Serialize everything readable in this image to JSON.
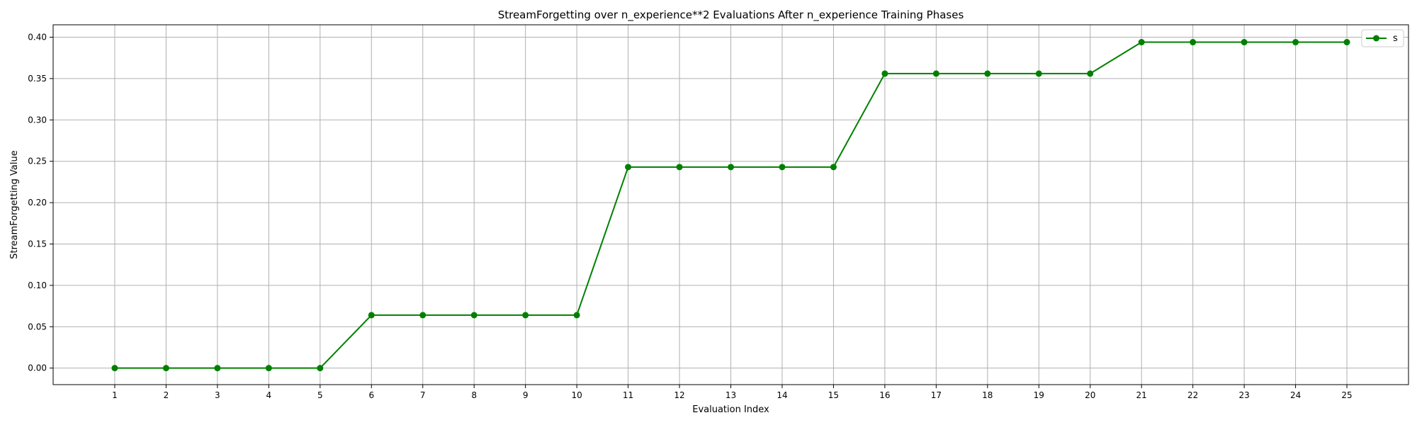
{
  "chart_data": {
    "type": "line",
    "title": "StreamForgetting over n_experience**2 Evaluations After n_experience Training Phases",
    "xlabel": "Evaluation Index",
    "ylabel": "StreamForgetting Value",
    "x": [
      1,
      2,
      3,
      4,
      5,
      6,
      7,
      8,
      9,
      10,
      11,
      12,
      13,
      14,
      15,
      16,
      17,
      18,
      19,
      20,
      21,
      22,
      23,
      24,
      25
    ],
    "xlim": [
      -0.2,
      26.2
    ],
    "ylim": [
      -0.02,
      0.415
    ],
    "yticks": [
      0.0,
      0.05,
      0.1,
      0.15,
      0.2,
      0.25,
      0.3,
      0.35,
      0.4
    ],
    "ytick_labels": [
      "0.00",
      "0.05",
      "0.10",
      "0.15",
      "0.20",
      "0.25",
      "0.30",
      "0.35",
      "0.40"
    ],
    "grid": true,
    "legend_position": "top-right",
    "series": [
      {
        "name": "s",
        "color": "#008000",
        "marker": "circle",
        "values": [
          0,
          0,
          0,
          0,
          0,
          0.064,
          0.064,
          0.064,
          0.064,
          0.064,
          0.243,
          0.243,
          0.243,
          0.243,
          0.243,
          0.356,
          0.356,
          0.356,
          0.356,
          0.356,
          0.394,
          0.394,
          0.394,
          0.394,
          0.394
        ]
      }
    ]
  }
}
